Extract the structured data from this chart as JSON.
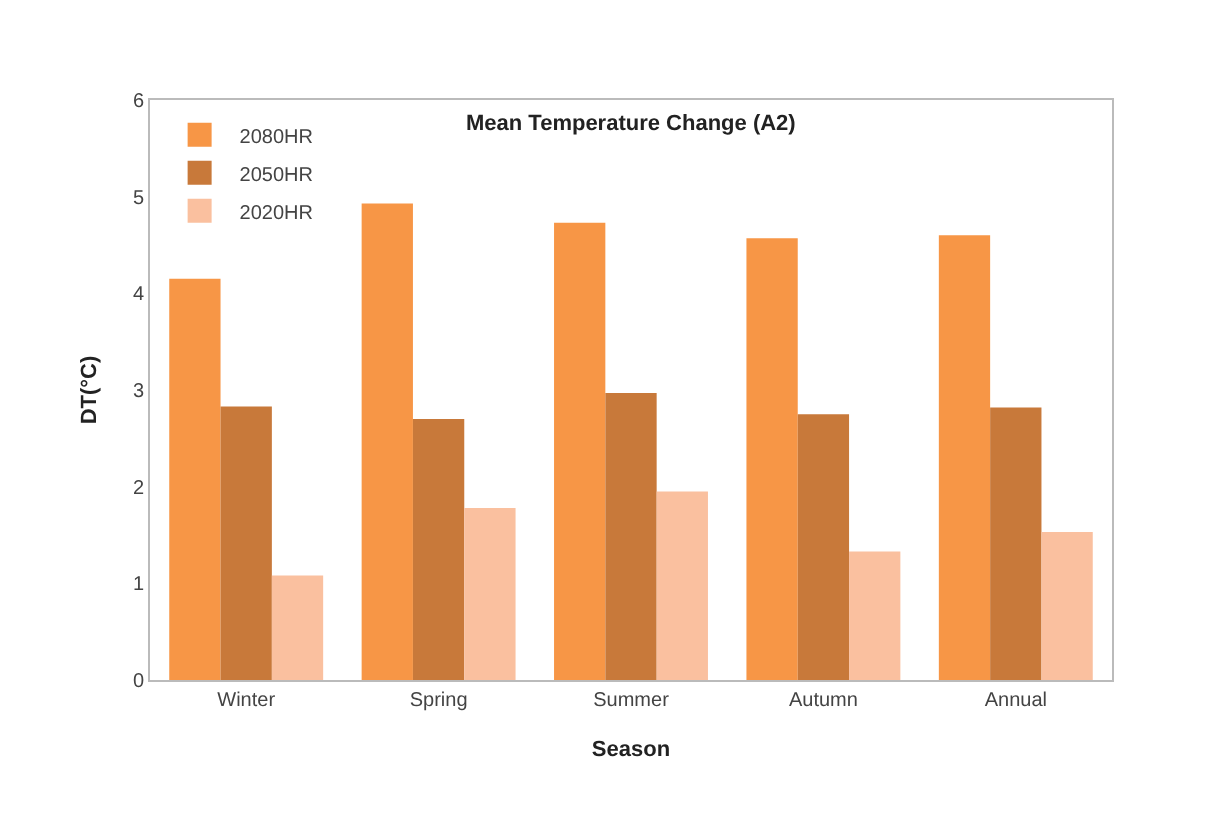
{
  "chart_data": {
    "type": "bar",
    "title": "Mean Temperature Change (A2)",
    "xlabel": "Season",
    "ylabel": "DT(°C)",
    "categories": [
      "Winter",
      "Spring",
      "Summer",
      "Autumn",
      "Annual"
    ],
    "series": [
      {
        "name": "2080HR",
        "color": "#f79646",
        "values": [
          4.15,
          4.93,
          4.73,
          4.57,
          4.6
        ]
      },
      {
        "name": "2050HR",
        "color": "#c8793a",
        "values": [
          2.83,
          2.7,
          2.97,
          2.75,
          2.82
        ]
      },
      {
        "name": "2020HR",
        "color": "#fac09f",
        "values": [
          1.08,
          1.78,
          1.95,
          1.33,
          1.53
        ]
      }
    ],
    "ylim": [
      0,
      6
    ],
    "yticks": [
      0,
      1,
      2,
      3,
      4,
      5,
      6
    ],
    "legend": "top left"
  }
}
